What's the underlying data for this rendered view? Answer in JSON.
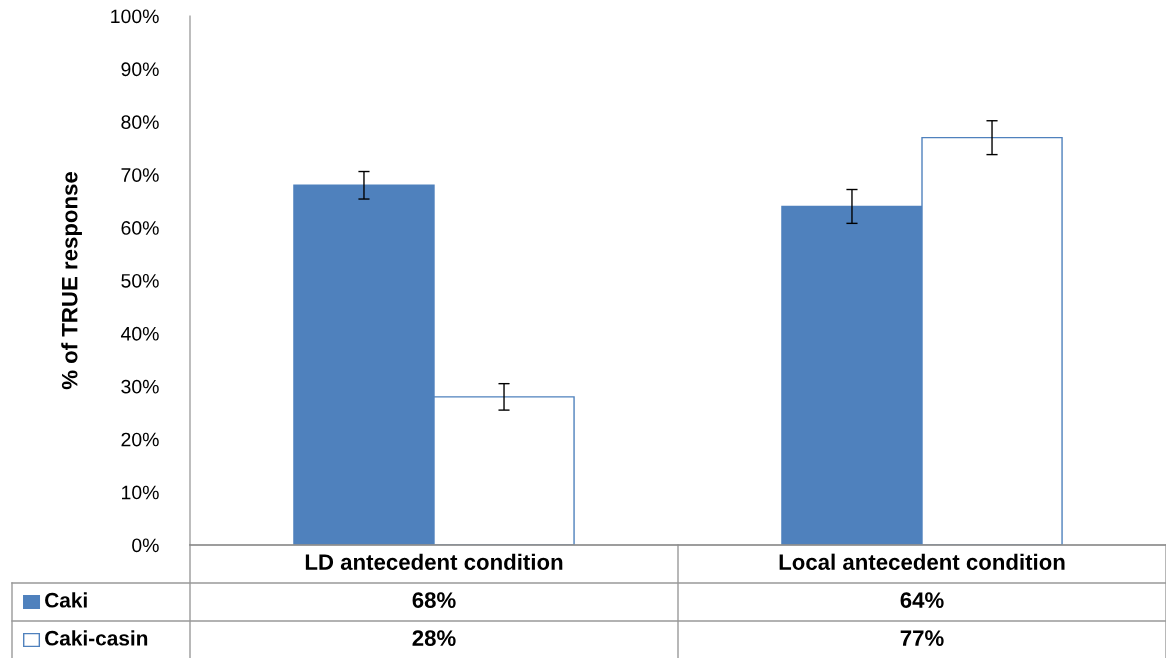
{
  "chart_data": {
    "type": "bar",
    "ylabel": "% of TRUE response",
    "categories": [
      "LD antecedent condition",
      "Local antecedent condition"
    ],
    "series": [
      {
        "name": "Caki",
        "color": "#4f81bd",
        "values": [
          68,
          64
        ],
        "errors": [
          2.6,
          3.2
        ],
        "value_labels": [
          "68%",
          "64%"
        ]
      },
      {
        "name": "Caki-casin",
        "color": "#ffffff",
        "values": [
          28,
          77
        ],
        "errors": [
          2.5,
          3.2
        ],
        "value_labels": [
          "28%",
          "77%"
        ]
      }
    ],
    "ylim": [
      0,
      100
    ],
    "yticks": [
      {
        "value": 0,
        "label": "0%"
      },
      {
        "value": 10,
        "label": "10%"
      },
      {
        "value": 20,
        "label": "20%"
      },
      {
        "value": 30,
        "label": "30%"
      },
      {
        "value": 40,
        "label": "40%"
      },
      {
        "value": 50,
        "label": "50%"
      },
      {
        "value": 60,
        "label": "60%"
      },
      {
        "value": 70,
        "label": "70%"
      },
      {
        "value": 80,
        "label": "80%"
      },
      {
        "value": 90,
        "label": "90%"
      },
      {
        "value": 100,
        "label": "100%"
      }
    ],
    "grid": false,
    "legend": "bottom left"
  }
}
